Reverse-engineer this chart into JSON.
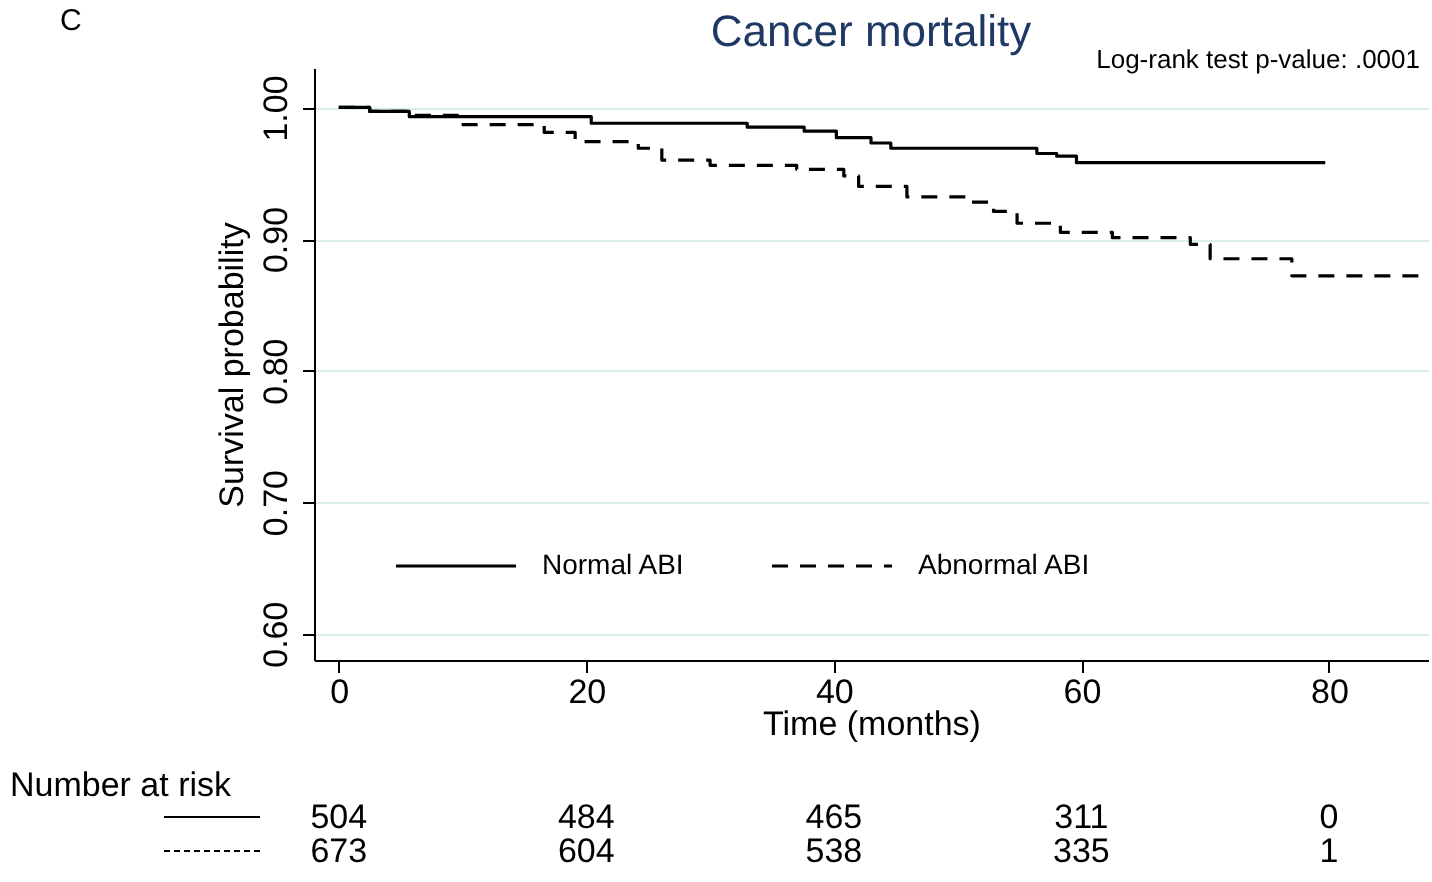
{
  "chart_data": {
    "type": "step",
    "title": "Cancer mortality",
    "xlabel": "Time (months)",
    "ylabel": "Survival probability",
    "annotations": [
      "C",
      "Log-rank test p-value: .0001",
      "Number at risk",
      "504",
      "484",
      "465",
      "311",
      "0",
      "673",
      "604",
      "538",
      "335",
      "1"
    ],
    "series": [
      {
        "name": "Normal ABI",
        "color": "#000000",
        "line_style": "solid",
        "x": [
          0,
          2.5,
          5.7,
          20.4,
          33,
          37.6,
          40.2,
          43,
          44.6,
          56.4,
          58,
          59.6,
          79.7
        ],
        "values": [
          1.0,
          0.997,
          0.993,
          0.988,
          0.985,
          0.982,
          0.977,
          0.973,
          0.969,
          0.965,
          0.963,
          0.958,
          0.958
        ]
      },
      {
        "name": "Abnormal ABI",
        "color": "#000000",
        "line_style": "dashed",
        "x": [
          0,
          2.5,
          5.7,
          9.6,
          16.6,
          19.1,
          24.2,
          26.1,
          30,
          37,
          40.8,
          42,
          45.9,
          51,
          52.9,
          54.8,
          58.3,
          62.5,
          68.8,
          70.4,
          77,
          87.3
        ],
        "values": [
          1.0,
          0.997,
          0.994,
          0.987,
          0.981,
          0.974,
          0.969,
          0.96,
          0.956,
          0.953,
          0.948,
          0.94,
          0.932,
          0.928,
          0.921,
          0.912,
          0.905,
          0.901,
          0.896,
          0.885,
          0.872,
          0.872
        ]
      }
    ],
    "xlim": [
      -2,
      88
    ],
    "xticks": [
      0,
      20,
      40,
      60,
      80
    ],
    "ylim": [
      0.58,
      1.03
    ],
    "yticks": [
      {
        "value": 0.6,
        "label": "0.60"
      },
      {
        "value": 0.7,
        "label": "0.70"
      },
      {
        "value": 0.8,
        "label": "0.80"
      },
      {
        "value": 0.9,
        "label": "0.90"
      },
      {
        "value": 1.0,
        "label": "1.00"
      }
    ],
    "grid": "y",
    "legend": "bottom left"
  }
}
